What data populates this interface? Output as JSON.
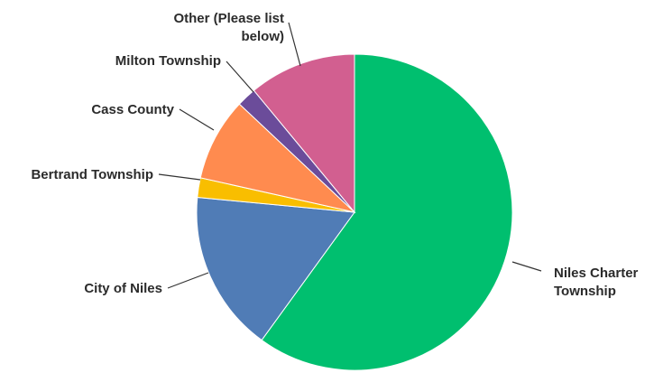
{
  "chart_data": {
    "type": "pie",
    "start_angle_deg": 0,
    "direction": "clockwise",
    "slices": [
      {
        "label": "Niles Charter Township",
        "label_lines": [
          "Niles Charter",
          "Township"
        ],
        "value": 60.0,
        "color": "#00bf6f"
      },
      {
        "label": "City of Niles",
        "label_lines": [
          "City of Niles"
        ],
        "value": 16.5,
        "color": "#507cb6"
      },
      {
        "label": "Bertrand Township",
        "label_lines": [
          "Bertrand Township"
        ],
        "value": 2.0,
        "color": "#f9be00"
      },
      {
        "label": "Cass County",
        "label_lines": [
          "Cass County"
        ],
        "value": 8.5,
        "color": "#ff8b4f"
      },
      {
        "label": "Milton Township",
        "label_lines": [
          "Milton Township"
        ],
        "value": 2.0,
        "color": "#6b4c9a"
      },
      {
        "label": "Other (Please list below)",
        "label_lines": [
          "Other (Please list",
          "below)"
        ],
        "value": 11.0,
        "color": "#d25f90"
      }
    ]
  }
}
